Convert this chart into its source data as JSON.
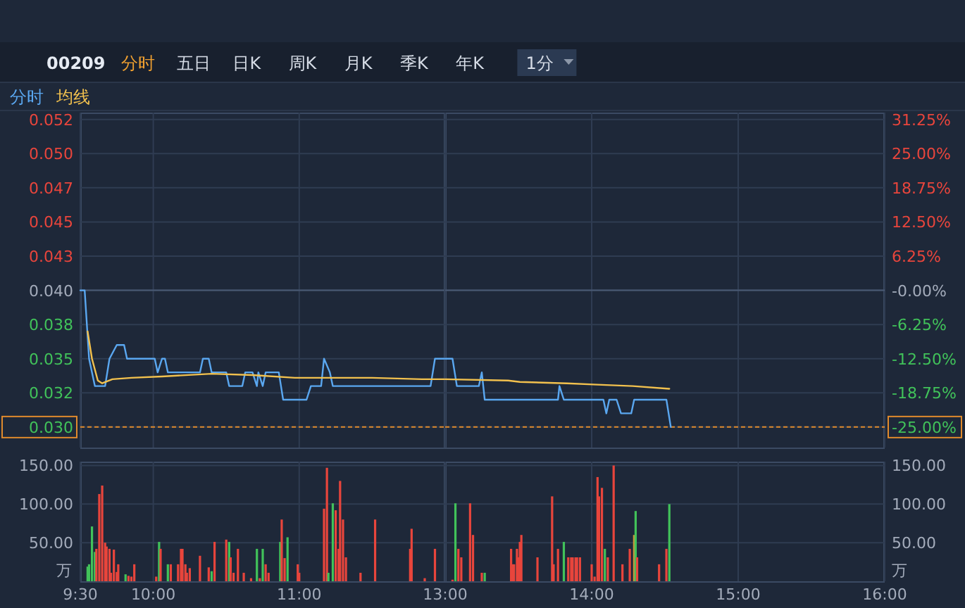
{
  "chart_data": [
    {
      "type": "line",
      "title": "00209",
      "annotations": [
        "分时",
        "五日",
        "日K",
        "周K",
        "月K",
        "季K",
        "年K",
        "1分"
      ],
      "legend": "top left",
      "grid": true,
      "tick_labels": "y",
      "xlim": [
        9.5,
        12
      ],
      "xticks": [
        {
          "value": 9.5,
          "label": null
        },
        {
          "value": 10,
          "label": null
        },
        {
          "value": 11,
          "label": null
        }
      ],
      "ylim": [
        0.0285,
        0.053
      ],
      "yticks": [
        {
          "value": 0.0525,
          "label": "0.052"
        },
        {
          "value": 0.05,
          "label": "0.050"
        },
        {
          "value": 0.0475,
          "label": "0.047"
        },
        {
          "value": 0.045,
          "label": "0.045"
        },
        {
          "value": 0.0425,
          "label": "0.043"
        },
        {
          "value": 0.04,
          "label": "0.040"
        },
        {
          "value": 0.0375,
          "label": "0.038"
        },
        {
          "value": 0.035,
          "label": "0.035"
        },
        {
          "value": 0.0325,
          "label": "0.032"
        },
        {
          "value": 0.03,
          "label": "0.030"
        }
      ],
      "ref_lines": [
        {
          "axis": "y",
          "value": 0.04,
          "color": "#4a5a75",
          "line_style": "solid"
        },
        {
          "axis": "y",
          "value": 0.03,
          "color": "#e08a2c",
          "line_style": "dashed"
        }
      ],
      "series": [
        {
          "name": "分时",
          "color": "#5aa7f0",
          "x": [
            9.5,
            9.53,
            9.56,
            9.6,
            9.67,
            9.7,
            9.75,
            9.8,
            9.82,
            10.01,
            10.03,
            10.06,
            10.08,
            10.1,
            10.32,
            10.34,
            10.38,
            10.4,
            10.5,
            10.52,
            10.61,
            10.63,
            10.68,
            10.71,
            10.72,
            10.75,
            10.77,
            10.86,
            10.89,
            11.05,
            11.08,
            11.15,
            11.17,
            11.21,
            11.23,
            11.9,
            11.93,
            12
          ],
          "values": [
            0.04,
            0.04,
            0.035,
            0.033,
            0.033,
            0.035,
            0.036,
            0.036,
            0.035,
            0.035,
            0.034,
            0.035,
            0.035,
            0.034,
            0.034,
            0.035,
            0.035,
            0.034,
            0.034,
            0.033,
            0.033,
            0.034,
            0.034,
            0.033,
            0.034,
            0.033,
            0.034,
            0.034,
            0.032,
            0.032,
            0.033,
            0.033,
            0.035,
            0.034,
            0.033,
            0.033,
            0.035,
            0.035
          ]
        },
        {
          "name": "均线",
          "color": "#f2c14e",
          "x": [
            9.55,
            9.58,
            9.62,
            9.65,
            9.72,
            9.85,
            10.06,
            10.4,
            10.68,
            10.97,
            11.5,
            11.84,
            12
          ],
          "values": [
            0.037,
            0.035,
            0.0334,
            0.0332,
            0.0335,
            0.0336,
            0.0337,
            0.0339,
            0.0338,
            0.0336,
            0.0336,
            0.0335,
            0.0335
          ]
        }
      ]
    },
    {
      "type": "line",
      "grid": true,
      "tick_labels": "y",
      "xlim": [
        13,
        16
      ],
      "xticks": [
        {
          "value": 13,
          "label": null
        },
        {
          "value": 14,
          "label": null
        },
        {
          "value": 15,
          "label": null
        },
        {
          "value": 16,
          "label": null
        }
      ],
      "ylim": [
        0.0285,
        0.053
      ],
      "y2lim": [
        -28.75,
        32.5
      ],
      "y2ticks": [
        {
          "value": 31.25,
          "label": "31.25%"
        },
        {
          "value": 25,
          "label": "25.00%"
        },
        {
          "value": 18.75,
          "label": "18.75%"
        },
        {
          "value": 12.5,
          "label": "12.50%"
        },
        {
          "value": 6.25,
          "label": "6.25%"
        },
        {
          "value": 0,
          "label": "-0.00%"
        },
        {
          "value": -6.25,
          "label": "-6.25%"
        },
        {
          "value": -12.5,
          "label": "-12.50%"
        },
        {
          "value": -18.75,
          "label": "-18.75%"
        },
        {
          "value": -25,
          "label": "-25.00%"
        }
      ],
      "ref_lines": [
        {
          "axis": "y",
          "value": 0.04,
          "color": "#4a5a75",
          "line_style": "solid"
        },
        {
          "axis": "y",
          "value": 0.03,
          "color": "#e08a2c",
          "line_style": "dashed"
        }
      ],
      "series": [
        {
          "color": "#5aa7f0",
          "x": [
            13,
            13.05,
            13.08,
            13.23,
            13.25,
            13.27,
            13.77,
            13.78,
            13.81,
            14.08,
            14.1,
            14.12,
            14.17,
            14.2,
            14.27,
            14.29,
            14.51,
            14.54
          ],
          "values": [
            0.035,
            0.035,
            0.033,
            0.033,
            0.034,
            0.032,
            0.032,
            0.033,
            0.032,
            0.032,
            0.031,
            0.032,
            0.032,
            0.031,
            0.031,
            0.032,
            0.032,
            0.03
          ]
        },
        {
          "color": "#f2c14e",
          "x": [
            13,
            13.43,
            13.51,
            13.83,
            14.04,
            14.28,
            14.53
          ],
          "values": [
            0.0335,
            0.0334,
            0.0333,
            0.0332,
            0.0331,
            0.033,
            0.0328
          ]
        }
      ]
    },
    {
      "type": "bar",
      "ylabel": "万",
      "grid": true,
      "xlim": [
        9.5,
        12
      ],
      "xticks": [
        {
          "value": 9.5,
          "label": "9:30"
        },
        {
          "value": 10,
          "label": "10:00"
        },
        {
          "value": 11,
          "label": "11:00"
        }
      ],
      "ylim": [
        0,
        155
      ],
      "yticks": [
        {
          "value": 50,
          "label": "50.00"
        },
        {
          "value": 100,
          "label": "100.00"
        },
        {
          "value": 150,
          "label": "150.00"
        }
      ],
      "x": [
        9.55,
        9.56,
        9.58,
        9.6,
        9.61,
        9.63,
        9.65,
        9.67,
        9.68,
        9.7,
        9.71,
        9.73,
        9.75,
        9.76,
        9.81,
        9.83,
        9.85,
        9.87,
        10.02,
        10.04,
        10.05,
        10.1,
        10.12,
        10.17,
        10.19,
        10.2,
        10.22,
        10.23,
        10.25,
        10.32,
        10.38,
        10.4,
        10.42,
        10.5,
        10.52,
        10.53,
        10.55,
        10.58,
        10.62,
        10.67,
        10.71,
        10.73,
        10.75,
        10.77,
        10.79,
        10.87,
        10.88,
        10.9,
        10.92,
        10.99,
        11.0,
        11.17,
        11.19,
        11.2,
        11.23,
        11.25,
        11.27,
        11.28,
        11.3,
        11.32,
        11.42,
        11.52,
        11.76,
        11.77,
        11.86,
        11.93
      ],
      "values": [
        19,
        22,
        71,
        38,
        42,
        113,
        124,
        50,
        45,
        42,
        11,
        41,
        12,
        22,
        9,
        7,
        6,
        22,
        6,
        51,
        42,
        22,
        22,
        22,
        42,
        42,
        22,
        11,
        17,
        33,
        18,
        13,
        51,
        54,
        51,
        31,
        11,
        42,
        11,
        4,
        42,
        4,
        42,
        22,
        11,
        51,
        80,
        30,
        57,
        22,
        11,
        94,
        147,
        11,
        101,
        92,
        42,
        130,
        80,
        31,
        11,
        80,
        42,
        68,
        4,
        42
      ],
      "colors": [
        "#41c25a",
        "#41c25a",
        "#41c25a",
        "#41c25a",
        "#e8453c",
        "#e8453c",
        "#e8453c",
        "#e8453c",
        "#e8453c",
        "#e8453c",
        "#e8453c",
        "#e8453c",
        "#e8453c",
        "#e8453c",
        "#41c25a",
        "#e8453c",
        "#e8453c",
        "#e8453c",
        "#e8453c",
        "#41c25a",
        "#e8453c",
        "#41c25a",
        "#e8453c",
        "#e8453c",
        "#e8453c",
        "#e8453c",
        "#e8453c",
        "#e8453c",
        "#e8453c",
        "#e8453c",
        "#e8453c",
        "#41c25a",
        "#e8453c",
        "#e8453c",
        "#41c25a",
        "#e8453c",
        "#e8453c",
        "#e8453c",
        "#e8453c",
        "#e8453c",
        "#41c25a",
        "#e8453c",
        "#41c25a",
        "#e8453c",
        "#e8453c",
        "#41c25a",
        "#e8453c",
        "#e8453c",
        "#41c25a",
        "#e8453c",
        "#e8453c",
        "#e8453c",
        "#e8453c",
        "#41c25a",
        "#41c25a",
        "#e8453c",
        "#e8453c",
        "#e8453c",
        "#e8453c",
        "#e8453c",
        "#e8453c",
        "#e8453c",
        "#e8453c",
        "#e8453c",
        "#e8453c",
        "#e8453c"
      ]
    },
    {
      "type": "bar",
      "y2label": "万",
      "grid": true,
      "xlim": [
        13,
        16
      ],
      "xticks": [
        {
          "value": 13,
          "label": "13:00"
        },
        {
          "value": 14,
          "label": "14:00"
        },
        {
          "value": 15,
          "label": "15:00"
        },
        {
          "value": 16,
          "label": "16:00"
        }
      ],
      "ylim": [
        0,
        155
      ],
      "y2lim": [
        0,
        155
      ],
      "y2ticks": [
        {
          "value": 50,
          "label": "50.00"
        },
        {
          "value": 100,
          "label": "100.00"
        },
        {
          "value": 150,
          "label": "150.00"
        }
      ],
      "x": [
        13.05,
        13.07,
        13.09,
        13.11,
        13.17,
        13.19,
        13.25,
        13.27,
        13.45,
        13.46,
        13.47,
        13.49,
        13.5,
        13.51,
        13.52,
        13.63,
        13.73,
        13.74,
        13.77,
        13.81,
        13.84,
        13.86,
        13.87,
        13.89,
        13.9,
        13.92,
        14.0,
        14.02,
        14.04,
        14.05,
        14.07,
        14.09,
        14.11,
        14.15,
        14.21,
        14.26,
        14.29,
        14.3,
        14.31,
        14.46,
        14.51,
        14.53
      ],
      "values": [
        2,
        101,
        42,
        31,
        101,
        60,
        11,
        11,
        42,
        22,
        22,
        42,
        31,
        51,
        60,
        31,
        110,
        22,
        42,
        51,
        31,
        31,
        31,
        31,
        31,
        31,
        22,
        6,
        135,
        110,
        121,
        42,
        31,
        150,
        22,
        42,
        60,
        91,
        31,
        22,
        42,
        100
      ],
      "colors": [
        "#e8453c",
        "#41c25a",
        "#e8453c",
        "#e8453c",
        "#e8453c",
        "#e8453c",
        "#e8453c",
        "#41c25a",
        "#e8453c",
        "#e8453c",
        "#e8453c",
        "#e8453c",
        "#e8453c",
        "#e8453c",
        "#e8453c",
        "#e8453c",
        "#e8453c",
        "#e8453c",
        "#e8453c",
        "#41c25a",
        "#e8453c",
        "#e8453c",
        "#e8453c",
        "#e8453c",
        "#e8453c",
        "#e8453c",
        "#e8453c",
        "#e8453c",
        "#e8453c",
        "#e8453c",
        "#e8453c",
        "#41c25a",
        "#e8453c",
        "#e8453c",
        "#e8453c",
        "#e8453c",
        "#c8963c",
        "#41c25a",
        "#e8453c",
        "#e8453c",
        "#e8453c",
        "#41c25a"
      ]
    }
  ]
}
